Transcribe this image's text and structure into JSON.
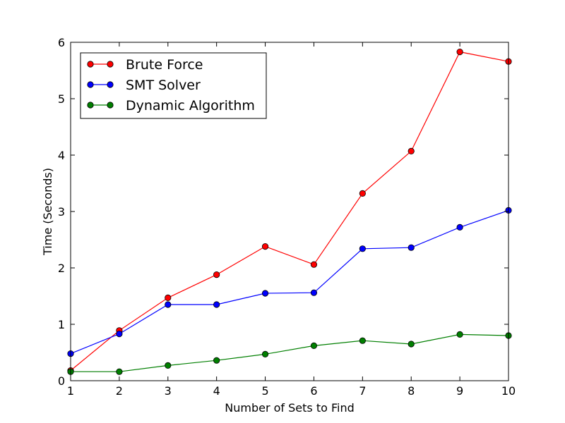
{
  "chart_data": {
    "type": "line",
    "title": "",
    "xlabel": "Number of Sets to Find",
    "ylabel": "Time (Seconds)",
    "xlim": [
      1,
      10
    ],
    "ylim": [
      0,
      6
    ],
    "xticks": [
      1,
      2,
      3,
      4,
      5,
      6,
      7,
      8,
      9,
      10
    ],
    "yticks": [
      0,
      1,
      2,
      3,
      4,
      5,
      6
    ],
    "grid": false,
    "legend_position": "top-left",
    "x": [
      1,
      2,
      3,
      4,
      5,
      6,
      7,
      8,
      9,
      10
    ],
    "series": [
      {
        "name": "Brute Force",
        "color": "#ff0000",
        "values": [
          0.18,
          0.89,
          1.47,
          1.88,
          2.38,
          2.06,
          3.32,
          4.07,
          5.83,
          5.66
        ]
      },
      {
        "name": "SMT Solver",
        "color": "#0000ff",
        "values": [
          0.48,
          0.83,
          1.35,
          1.35,
          1.55,
          1.56,
          2.34,
          2.36,
          2.72,
          3.02
        ]
      },
      {
        "name": "Dynamic Algorithm",
        "color": "#007f00",
        "values": [
          0.16,
          0.16,
          0.27,
          0.36,
          0.47,
          0.62,
          0.71,
          0.65,
          0.82,
          0.8
        ]
      }
    ]
  }
}
